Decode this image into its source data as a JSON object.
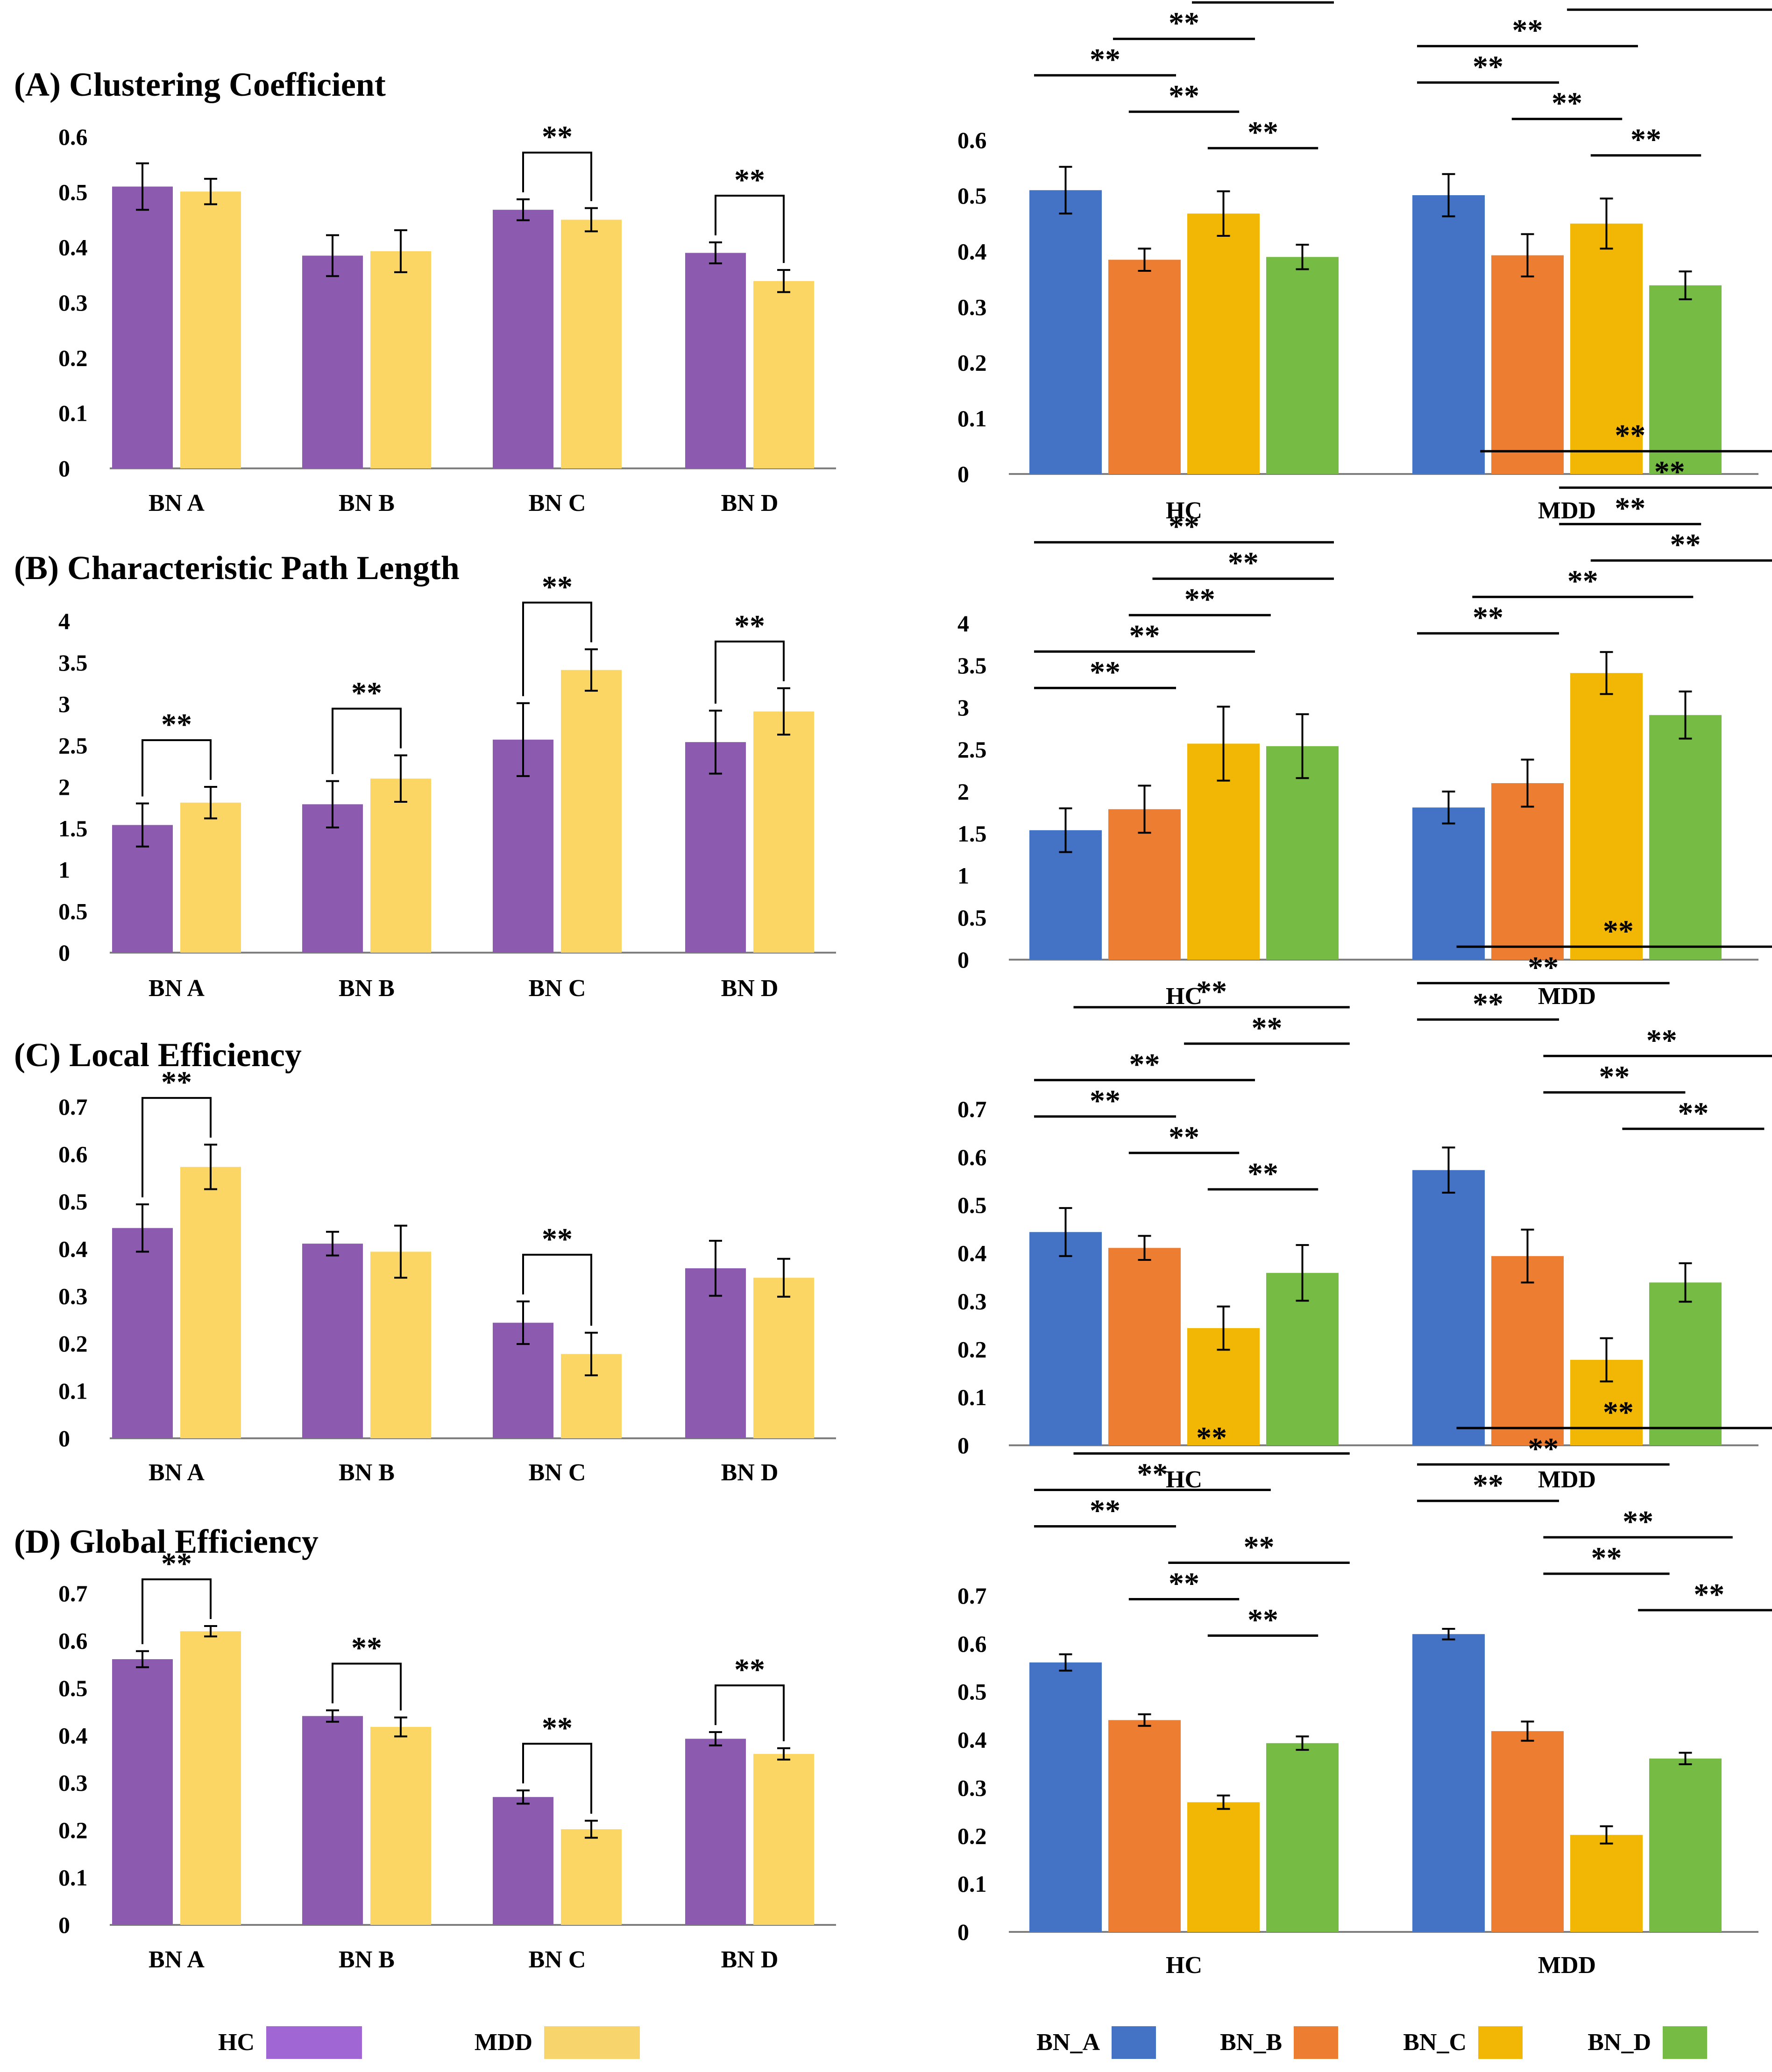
{
  "colors": {
    "HC": "#8c5bb0",
    "MDD": "#fcd665",
    "BN_A": "#4472c4",
    "BN_B": "#ed7d31",
    "BN_C": "#f2b705",
    "BN_D": "#76bc44",
    "legend_HC": "#a066d3",
    "legend_MDD": "#f7d46c"
  },
  "legend": {
    "left": [
      "HC",
      "MDD"
    ],
    "right": [
      "BN_A",
      "BN_B",
      "BN_C",
      "BN_D"
    ]
  },
  "chart_data": [
    {
      "id": "A-left",
      "type": "bar",
      "title": "(A) Clustering Coefficient",
      "categories": [
        "BN A",
        "BN B",
        "BN C",
        "BN D"
      ],
      "ylim": [
        0,
        0.6
      ],
      "yticks": [
        "0",
        "0.1",
        "0.2",
        "0.3",
        "0.4",
        "0.5",
        "0.6"
      ],
      "series": [
        {
          "name": "HC",
          "color_key": "HC",
          "values": [
            0.51,
            0.385,
            0.468,
            0.39
          ],
          "errors": [
            0.042,
            0.037,
            0.019,
            0.019
          ]
        },
        {
          "name": "MDD",
          "color_key": "MDD",
          "values": [
            0.501,
            0.393,
            0.45,
            0.339
          ],
          "errors": [
            0.023,
            0.038,
            0.021,
            0.02
          ]
        }
      ],
      "significance": [
        {
          "label": "**",
          "bracket": true,
          "groups": [
            2,
            3
          ]
        }
      ]
    },
    {
      "id": "A-right",
      "type": "bar",
      "categories": [
        "HC",
        "MDD"
      ],
      "ylim": [
        0,
        0.6
      ],
      "yticks": [
        "0",
        "0.1",
        "0.2",
        "0.3",
        "0.4",
        "0.5",
        "0.6"
      ],
      "series": [
        {
          "name": "BN_A",
          "color_key": "BN_A",
          "values": [
            0.51,
            0.501
          ],
          "errors": [
            0.042,
            0.038
          ]
        },
        {
          "name": "BN_B",
          "color_key": "BN_B",
          "values": [
            0.385,
            0.393
          ],
          "errors": [
            0.02,
            0.038
          ]
        },
        {
          "name": "BN_C",
          "color_key": "BN_C",
          "values": [
            0.468,
            0.45
          ],
          "errors": [
            0.04,
            0.045
          ]
        },
        {
          "name": "BN_D",
          "color_key": "BN_D",
          "values": [
            0.39,
            0.339
          ],
          "errors": [
            0.022,
            0.025
          ]
        }
      ],
      "significance": [
        {
          "label": "**",
          "group": 0,
          "lines": [
            [
              0,
              2,
              3
            ],
            [
              0,
              1,
              2
            ],
            [
              0,
              0,
              1
            ],
            [
              0,
              1.2,
              1.8
            ],
            [
              0,
              2.2,
              2.8
            ]
          ]
        },
        {
          "label": "**",
          "group": 1,
          "lines": [
            [
              1,
              1.2,
              3.8
            ],
            [
              1,
              1.9,
              3.8
            ],
            [
              1,
              0,
              2
            ],
            [
              1,
              0,
              1
            ],
            [
              1,
              1.2,
              1.8
            ],
            [
              1,
              2.2,
              2.8
            ]
          ]
        }
      ]
    },
    {
      "id": "B-left",
      "type": "bar",
      "title": "(B) Characteristic Path Length",
      "categories": [
        "BN A",
        "BN B",
        "BN C",
        "BN D"
      ],
      "ylim": [
        0,
        4
      ],
      "yticks": [
        "0",
        "0.5",
        "1",
        "1.5",
        "2",
        "2.5",
        "3",
        "3.5",
        "4"
      ],
      "series": [
        {
          "name": "HC",
          "color_key": "HC",
          "values": [
            1.54,
            1.79,
            2.57,
            2.54
          ],
          "errors": [
            0.26,
            0.28,
            0.44,
            0.38
          ]
        },
        {
          "name": "MDD",
          "color_key": "MDD",
          "values": [
            1.81,
            2.1,
            3.41,
            2.91
          ],
          "errors": [
            0.19,
            0.28,
            0.25,
            0.28
          ]
        }
      ],
      "significance": [
        {
          "label": "**",
          "bracket": true,
          "groups": [
            0,
            1,
            2,
            3
          ]
        }
      ]
    },
    {
      "id": "B-right",
      "type": "bar",
      "categories": [
        "HC",
        "MDD"
      ],
      "ylim": [
        0,
        4
      ],
      "yticks": [
        "0",
        "0.5",
        "1",
        "1.5",
        "2",
        "2.5",
        "3",
        "3.5",
        "4"
      ],
      "series": [
        {
          "name": "BN_A",
          "color_key": "BN_A",
          "values": [
            1.54,
            1.81
          ],
          "errors": [
            0.26,
            0.19
          ]
        },
        {
          "name": "BN_B",
          "color_key": "BN_B",
          "values": [
            1.79,
            2.1
          ],
          "errors": [
            0.28,
            0.28
          ]
        },
        {
          "name": "BN_C",
          "color_key": "BN_C",
          "values": [
            2.57,
            3.41
          ],
          "errors": [
            0.44,
            0.25
          ]
        },
        {
          "name": "BN_D",
          "color_key": "BN_D",
          "values": [
            2.54,
            2.91
          ],
          "errors": [
            0.38,
            0.28
          ]
        }
      ],
      "significance": [
        {
          "label": "**",
          "group": 0,
          "lines": [
            [
              0,
              0,
              3
            ],
            [
              0,
              1.5,
              3
            ],
            [
              0,
              1.2,
              2.2
            ],
            [
              0,
              0,
              2
            ],
            [
              0,
              0,
              1
            ]
          ]
        },
        {
          "label": "**",
          "group": 1,
          "lines": [
            [
              1,
              0.8,
              3.8
            ],
            [
              1,
              1.8,
              3.8
            ],
            [
              1,
              1.8,
              2.8
            ],
            [
              1,
              2.2,
              3.8
            ],
            [
              1,
              0.7,
              2.7
            ],
            [
              1,
              0,
              1
            ]
          ]
        }
      ]
    },
    {
      "id": "C-left",
      "type": "bar",
      "title": "(C) Local Efficiency",
      "categories": [
        "BN A",
        "BN B",
        "BN C",
        "BN D"
      ],
      "ylim": [
        0,
        0.7
      ],
      "yticks": [
        "0",
        "0.1",
        "0.2",
        "0.3",
        "0.4",
        "0.5",
        "0.6",
        "0.7"
      ],
      "series": [
        {
          "name": "HC",
          "color_key": "HC",
          "values": [
            0.444,
            0.411,
            0.244,
            0.359
          ],
          "errors": [
            0.05,
            0.025,
            0.045,
            0.058
          ]
        },
        {
          "name": "MDD",
          "color_key": "MDD",
          "values": [
            0.573,
            0.394,
            0.178,
            0.339
          ],
          "errors": [
            0.047,
            0.055,
            0.045,
            0.04
          ]
        }
      ],
      "significance": [
        {
          "label": "**",
          "bracket": true,
          "groups": [
            0,
            2
          ]
        }
      ]
    },
    {
      "id": "C-right",
      "type": "bar",
      "categories": [
        "HC",
        "MDD"
      ],
      "ylim": [
        0,
        0.7
      ],
      "yticks": [
        "0",
        "0.1",
        "0.2",
        "0.3",
        "0.4",
        "0.5",
        "0.6",
        "0.7"
      ],
      "series": [
        {
          "name": "BN_A",
          "color_key": "BN_A",
          "values": [
            0.444,
            0.573
          ],
          "errors": [
            0.05,
            0.047
          ]
        },
        {
          "name": "BN_B",
          "color_key": "BN_B",
          "values": [
            0.411,
            0.394
          ],
          "errors": [
            0.025,
            0.055
          ]
        },
        {
          "name": "BN_C",
          "color_key": "BN_C",
          "values": [
            0.244,
            0.178
          ],
          "errors": [
            0.045,
            0.045
          ]
        },
        {
          "name": "BN_D",
          "color_key": "BN_D",
          "values": [
            0.359,
            0.339
          ],
          "errors": [
            0.058,
            0.04
          ]
        }
      ],
      "significance": [
        {
          "label": "**",
          "group": 0,
          "lines": [
            [
              0,
              0.5,
              3.2
            ],
            [
              0,
              1.9,
              3.2
            ],
            [
              0,
              0,
              2
            ],
            [
              0,
              0,
              1
            ],
            [
              0,
              1.2,
              1.8
            ],
            [
              0,
              2.2,
              2.8
            ]
          ]
        },
        {
          "label": "**",
          "group": 1,
          "lines": [
            [
              1,
              0.5,
              3.8
            ],
            [
              1,
              0,
              2.4
            ],
            [
              1,
              0,
              1
            ],
            [
              1,
              1.6,
              3.8
            ],
            [
              1,
              1.6,
              2.6
            ],
            [
              1,
              2.6,
              3.6
            ]
          ]
        }
      ]
    },
    {
      "id": "D-left",
      "type": "bar",
      "title": "(D) Global Efficiency",
      "categories": [
        "BN A",
        "BN B",
        "BN C",
        "BN D"
      ],
      "ylim": [
        0,
        0.7
      ],
      "yticks": [
        "0",
        "0.1",
        "0.2",
        "0.3",
        "0.4",
        "0.5",
        "0.6",
        "0.7"
      ],
      "series": [
        {
          "name": "HC",
          "color_key": "HC",
          "values": [
            0.561,
            0.441,
            0.27,
            0.393
          ],
          "errors": [
            0.017,
            0.012,
            0.014,
            0.014
          ]
        },
        {
          "name": "MDD",
          "color_key": "MDD",
          "values": [
            0.62,
            0.418,
            0.202,
            0.361
          ],
          "errors": [
            0.011,
            0.02,
            0.018,
            0.012
          ]
        }
      ],
      "significance": [
        {
          "label": "**",
          "bracket": true,
          "groups": [
            0,
            1,
            2,
            3
          ]
        }
      ]
    },
    {
      "id": "D-right",
      "type": "bar",
      "categories": [
        "HC",
        "MDD"
      ],
      "ylim": [
        0,
        0.7
      ],
      "yticks": [
        "0",
        "0.1",
        "0.2",
        "0.3",
        "0.4",
        "0.5",
        "0.6",
        "0.7"
      ],
      "series": [
        {
          "name": "BN_A",
          "color_key": "BN_A",
          "values": [
            0.561,
            0.62
          ],
          "errors": [
            0.017,
            0.011
          ]
        },
        {
          "name": "BN_B",
          "color_key": "BN_B",
          "values": [
            0.441,
            0.418
          ],
          "errors": [
            0.012,
            0.02
          ]
        },
        {
          "name": "BN_C",
          "color_key": "BN_C",
          "values": [
            0.27,
            0.202
          ],
          "errors": [
            0.014,
            0.018
          ]
        },
        {
          "name": "BN_D",
          "color_key": "BN_D",
          "values": [
            0.393,
            0.361
          ],
          "errors": [
            0.014,
            0.012
          ]
        }
      ],
      "significance": [
        {
          "label": "**",
          "group": 0,
          "lines": [
            [
              0,
              0.5,
              3.2
            ],
            [
              0,
              0,
              2.2
            ],
            [
              0,
              0,
              1
            ],
            [
              0,
              1.7,
              3.2
            ],
            [
              0,
              1.2,
              1.8
            ],
            [
              0,
              2.2,
              2.8
            ]
          ]
        },
        {
          "label": "**",
          "group": 1,
          "lines": [
            [
              1,
              0.5,
              3.8
            ],
            [
              1,
              0,
              2.4
            ],
            [
              1,
              0,
              1
            ],
            [
              1,
              1.6,
              3.2
            ],
            [
              1,
              1.6,
              2.4
            ],
            [
              1,
              2.8,
              3.8
            ]
          ]
        }
      ]
    }
  ]
}
